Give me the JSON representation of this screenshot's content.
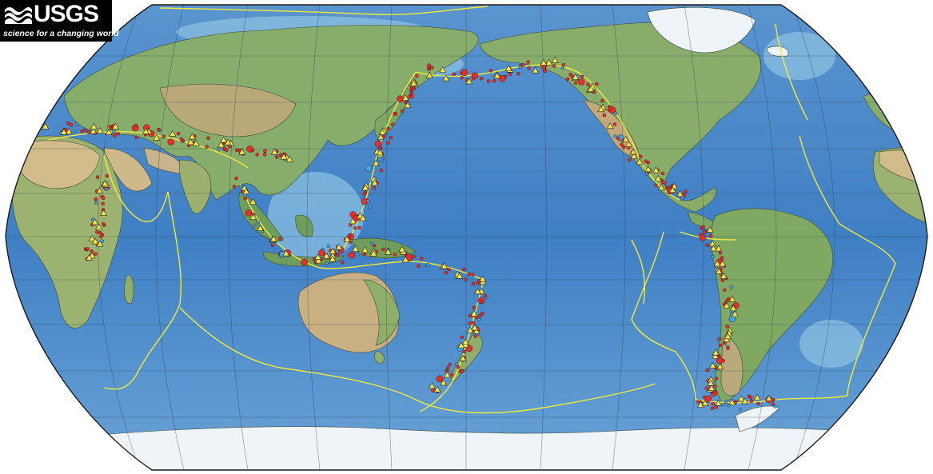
{
  "logo": {
    "agency": "USGS",
    "tagline": "science for a changing world"
  },
  "map": {
    "projection": "Robinson, Pacific-centered",
    "colors": {
      "ocean_deep": "#3f7fc4",
      "ocean_shallow": "#9ed0ea",
      "land_green": "#7fa96a",
      "land_arid": "#c9b78e",
      "ice": "#eef4f7",
      "plate_boundary": "#f2ea3a",
      "graticule": "#2c3a4a",
      "quake_shallow": "#e8302a",
      "quake_deep": "#3fa7e6",
      "volcano": "#f4e64a"
    },
    "symbols": {
      "earthquake": "circle",
      "volcano": "triangle-icon"
    }
  }
}
